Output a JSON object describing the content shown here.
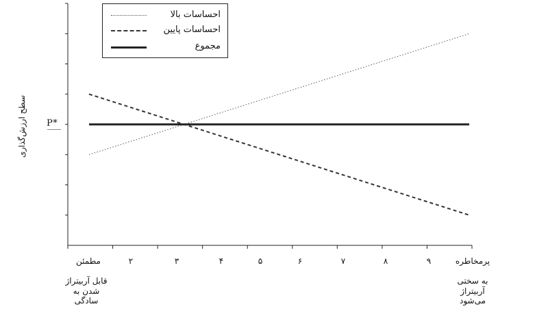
{
  "chart_data": {
    "type": "line",
    "ylabel": "سطح ارزش‌گذاری",
    "reference_label": "P*",
    "x_ticks": [
      "مطمئن",
      "۲",
      "۳",
      "۴",
      "۵",
      "۶",
      "۷",
      "۸",
      "۹",
      "پرمخاطره"
    ],
    "x_start_note": "قابل آربیتراژ شدن به سادگی",
    "x_end_note": "به سختی آربیتراژ می‌شود",
    "xlim": [
      1,
      10
    ],
    "ylim": [
      0,
      8
    ],
    "y_tick_count": 8,
    "series": [
      {
        "name": "احساسات بالا",
        "style": "dotted",
        "color": "#555555",
        "x": [
          1.5,
          10.5
        ],
        "y": [
          3.0,
          7.0
        ]
      },
      {
        "name": "احساسات پایین",
        "style": "dashed",
        "color": "#333333",
        "x": [
          1.5,
          10.5
        ],
        "y": [
          5.0,
          1.0
        ]
      },
      {
        "name": "مجموع",
        "style": "solid",
        "color": "#222222",
        "x": [
          1.5,
          10.5
        ],
        "y": [
          4.0,
          4.0
        ]
      }
    ]
  }
}
